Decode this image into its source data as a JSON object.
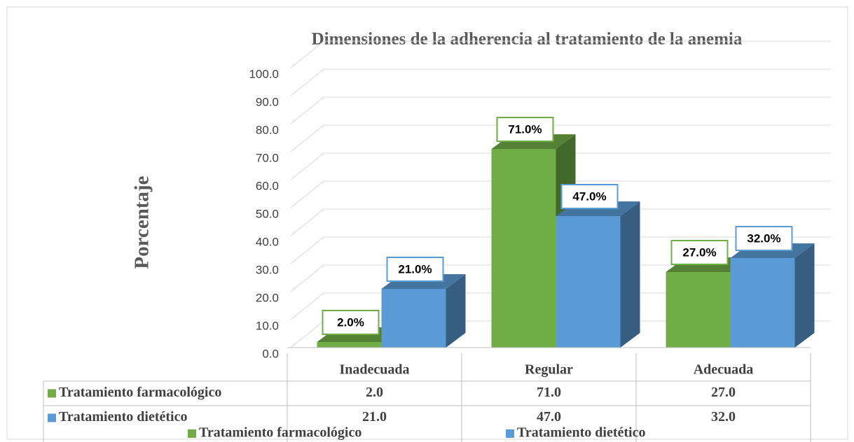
{
  "chart_data": {
    "type": "bar3d",
    "title": "Dimensiones de la adherencia al tratamiento de la anemia",
    "y_label": "Porcentaje",
    "categories": [
      "Inadecuada",
      "Regular",
      "Adecuada"
    ],
    "series": [
      {
        "name": "Tratamiento farmacológico",
        "color": "#70ad47",
        "values": [
          2,
          71,
          27
        ],
        "value_labels": [
          "2.0%",
          "71.0%",
          "27.0%"
        ],
        "table_labels": [
          "2.0",
          "71.0",
          "27.0"
        ]
      },
      {
        "name": "Tratamiento dietético",
        "color": "#5b9bd5",
        "values": [
          21,
          47,
          32
        ],
        "value_labels": [
          "21.0%",
          "47.0%",
          "32.0%"
        ],
        "table_labels": [
          "21.0",
          "47.0",
          "32.0"
        ]
      }
    ],
    "ylim": [
      0,
      100
    ],
    "yticks": [
      {
        "value": 0,
        "label": "0.0"
      },
      {
        "value": 10,
        "label": "10.0"
      },
      {
        "value": 20,
        "label": "20.0"
      },
      {
        "value": 30,
        "label": "30.0"
      },
      {
        "value": 40,
        "label": "40.0"
      },
      {
        "value": 50,
        "label": "50.0"
      },
      {
        "value": 60,
        "label": "60.0"
      },
      {
        "value": 70,
        "label": "70.0"
      },
      {
        "value": 80,
        "label": "80.0"
      },
      {
        "value": 90,
        "label": "90.0"
      },
      {
        "value": 100,
        "label": "100.0"
      }
    ],
    "grid": true,
    "legend": "bottom"
  }
}
